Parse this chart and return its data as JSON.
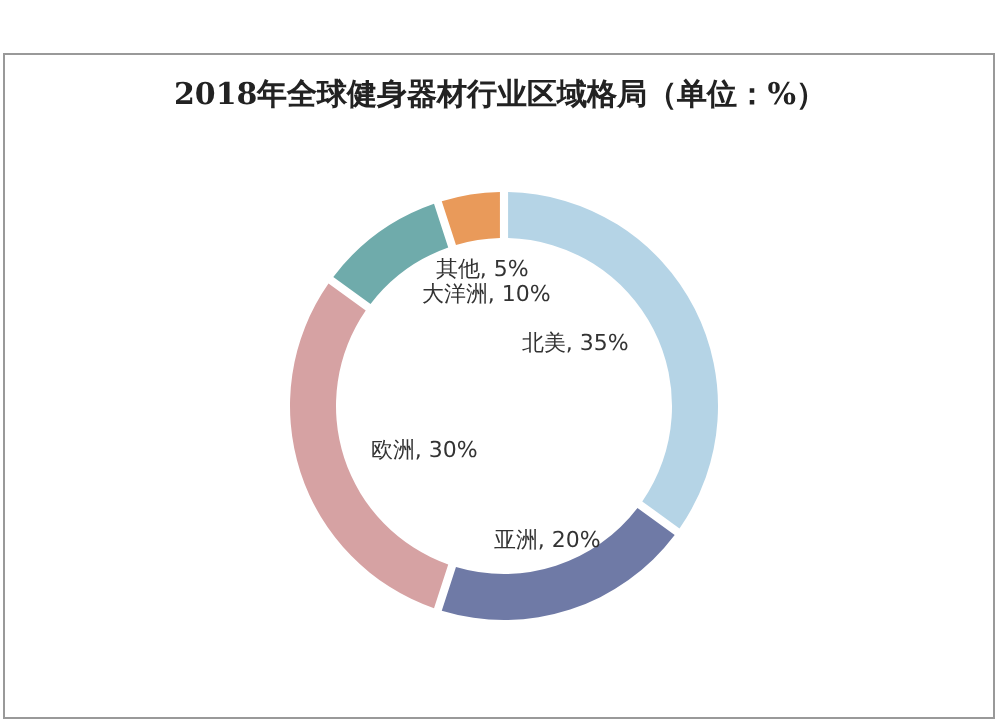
{
  "chart_data": {
    "type": "donut",
    "title": "2018年全球健身器材行业区域格局（单位：%）",
    "categories": [
      "北美",
      "亚洲",
      "欧洲",
      "大洋洲",
      "其他"
    ],
    "values": [
      35,
      20,
      30,
      10,
      5
    ],
    "colors": [
      "#b5d4e6",
      "#6f7aa6",
      "#d6a2a3",
      "#6fabab",
      "#e99a5a"
    ],
    "value_labels": [
      ", 35%",
      ", 20%",
      ", 30%",
      ", 10%",
      ", 5%"
    ],
    "legend": false
  }
}
